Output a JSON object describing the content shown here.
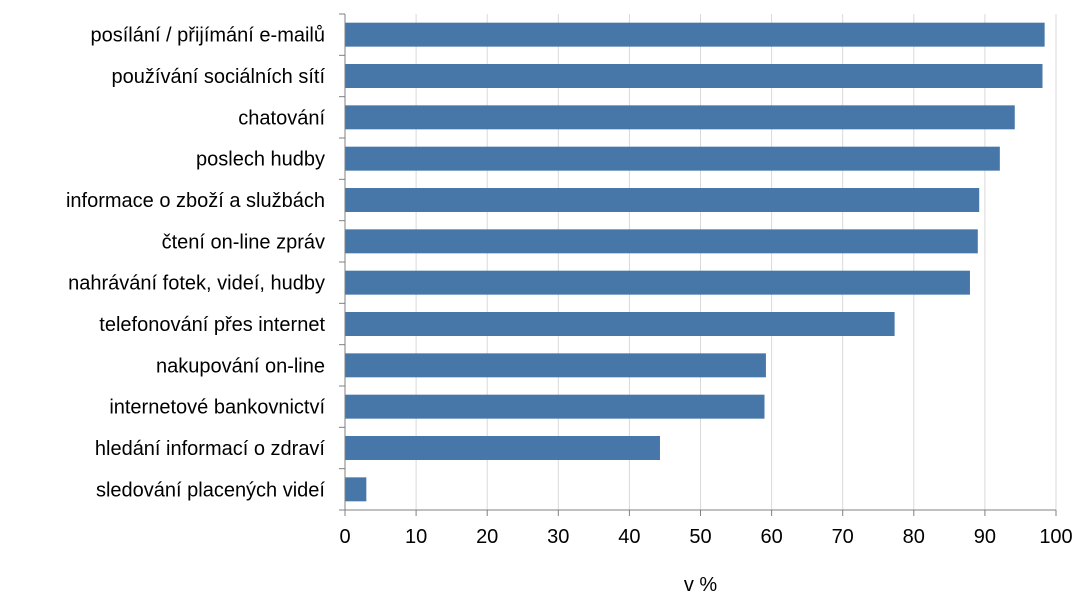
{
  "chart_data": {
    "type": "bar",
    "orientation": "horizontal",
    "categories": [
      "posílání / přijímání e-mailů",
      "používání sociálních sítí",
      "chatování",
      "poslech hudby",
      "informace o zboží a službách",
      "čtení on-line zpráv",
      "nahrávání fotek, videí, hudby",
      "telefonování přes internet",
      "nakupování on-line",
      "internetové bankovnictví",
      "hledání informací o zdraví",
      "sledování placených videí"
    ],
    "values": [
      98.4,
      98.1,
      94.2,
      92.1,
      89.2,
      89.0,
      87.9,
      77.3,
      59.2,
      59.0,
      44.3,
      3.0
    ],
    "title": "",
    "xlabel": "v %",
    "ylabel": "",
    "xlim": [
      0,
      100
    ],
    "xticks": [
      "0",
      "10",
      "20",
      "30",
      "40",
      "50",
      "60",
      "70",
      "80",
      "90",
      "100"
    ],
    "grid": "vertical",
    "legend": "none",
    "colors": {
      "bar": "#4677A8",
      "grid": "#D9D9D9",
      "axis": "#808080",
      "text": "#000000"
    }
  }
}
